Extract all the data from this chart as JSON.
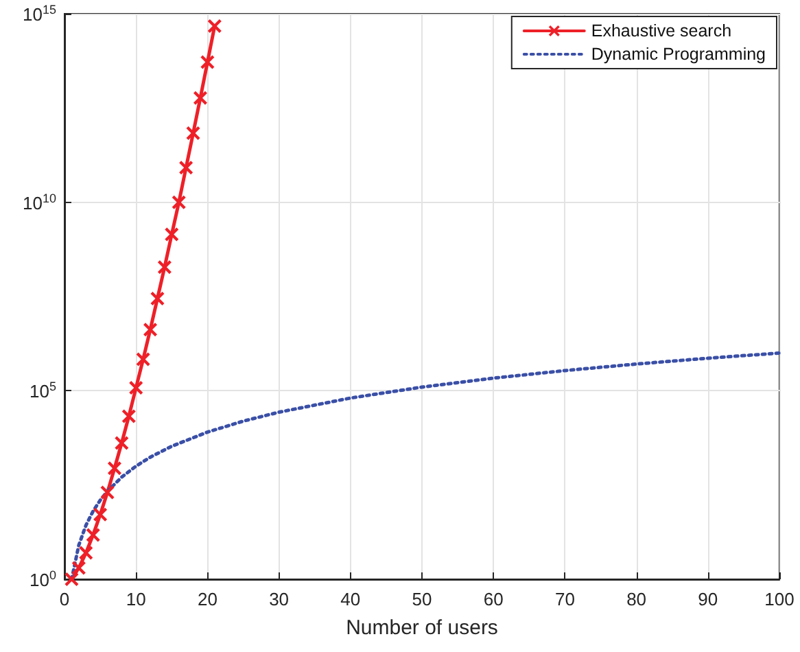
{
  "chart_data": {
    "type": "line",
    "xlabel": "Number of users",
    "x": [
      1,
      2,
      3,
      4,
      5,
      6,
      7,
      8,
      9,
      10,
      11,
      12,
      13,
      14,
      15,
      16,
      17,
      18,
      19,
      20,
      21
    ],
    "series": [
      {
        "name": "Exhaustive search",
        "color": "#ee2028",
        "marker": "cross",
        "line_style": "solid",
        "values": [
          1,
          2,
          5,
          15,
          52,
          200,
          880,
          4100,
          21000,
          120000,
          680000,
          4200000,
          28000000,
          190000000,
          1400000000,
          10000000000,
          83000000000,
          680000000000,
          5800000000000,
          52000000000000,
          470000000000000
        ]
      },
      {
        "name": "Dynamic Programming",
        "color": "#3a4fa6",
        "marker": "none",
        "line_style": "dotted",
        "x": [
          1,
          2,
          3,
          4,
          5,
          6,
          8,
          10,
          12,
          15,
          20,
          25,
          30,
          40,
          50,
          60,
          70,
          80,
          90,
          100
        ],
        "values": [
          1,
          8,
          27,
          64,
          125,
          216,
          512,
          1000,
          1728,
          3375,
          8000,
          15625,
          27000,
          64000,
          125000,
          216000,
          343000,
          512000,
          729000,
          1000000
        ]
      }
    ],
    "xlim": [
      0,
      100
    ],
    "xticks": [
      0,
      10,
      20,
      30,
      40,
      50,
      60,
      70,
      80,
      90,
      100
    ],
    "ylim": [
      1,
      1000000000000000
    ],
    "yticks": [
      {
        "value": 1,
        "label": "10$^{0}$"
      },
      {
        "value": 100000,
        "label": "10$^{5}$"
      },
      {
        "value": 10000000000,
        "label": "10$^{10}$"
      },
      {
        "value": 1000000000000000,
        "label": "10$^{15}$"
      }
    ],
    "log": "y",
    "grid": true,
    "legend": "top right"
  }
}
